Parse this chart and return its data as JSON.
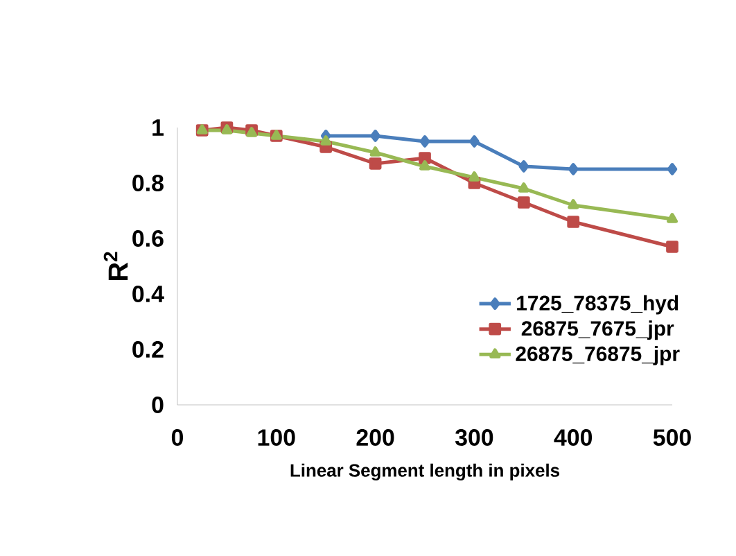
{
  "chart_data": {
    "type": "line",
    "xlabel": "Linear Segment length in pixels",
    "ylabel": "R$^{2}$",
    "x": [
      25,
      50,
      75,
      100,
      150,
      200,
      250,
      300,
      350,
      400,
      500
    ],
    "series": [
      {
        "name": "1725_78375_hyd",
        "color": "#4a7ebb",
        "marker": "diamond",
        "values": [
          null,
          null,
          null,
          null,
          0.97,
          0.97,
          0.95,
          0.95,
          0.86,
          0.85,
          0.85
        ]
      },
      {
        "name": "26875_7675_jpr",
        "color": "#be4b48",
        "marker": "square",
        "values": [
          0.99,
          1.0,
          0.99,
          0.97,
          0.93,
          0.87,
          0.89,
          0.8,
          0.73,
          0.66,
          0.57
        ]
      },
      {
        "name": "26875_76875_jpr",
        "color": "#98b954",
        "marker": "triangle",
        "values": [
          0.99,
          0.99,
          0.98,
          0.97,
          0.95,
          0.91,
          0.86,
          0.82,
          0.78,
          0.72,
          0.67
        ]
      }
    ],
    "xlim": [
      0,
      500
    ],
    "xticks": [
      0,
      100,
      200,
      300,
      400,
      500
    ],
    "ylim": [
      0,
      1
    ],
    "yticks": [
      0,
      0.2,
      0.4,
      0.6,
      0.8,
      1
    ],
    "grid": false,
    "legend": "bottom right",
    "line_style": "solid"
  }
}
